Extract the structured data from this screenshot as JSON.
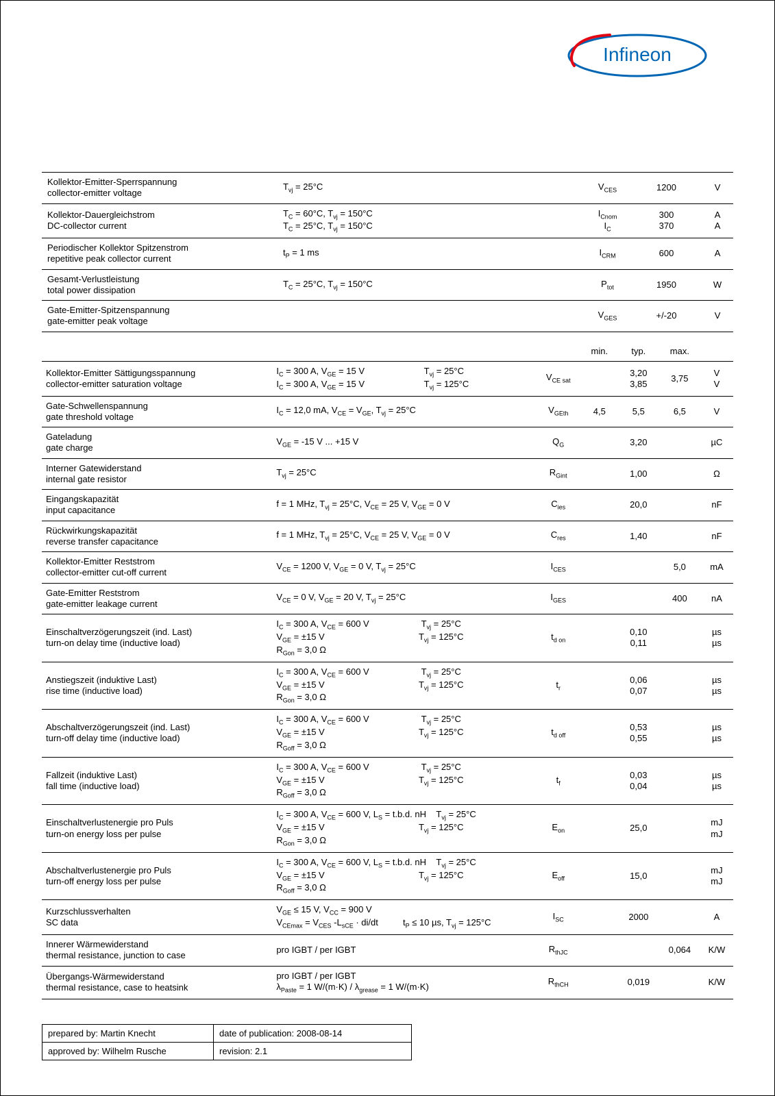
{
  "logo": {
    "text": "Infineon"
  },
  "table1": {
    "columns": {
      "desc_width": 300,
      "cond_width": 390,
      "sym_width": 60,
      "val_width": 90,
      "unit_width": 40
    },
    "rows": [
      {
        "desc_de": "Kollektor-Emitter-Sperrspannung",
        "desc_en": "collector-emitter voltage",
        "cond": "T<sub>vj</sub> = 25°C",
        "sym": "V<sub>CES</sub>",
        "val": "1200",
        "unit": "V"
      },
      {
        "desc_de": "Kollektor-Dauergleichstrom",
        "desc_en": "DC-collector current",
        "cond": "T<sub>C</sub> = 60°C, T<sub>vj</sub> = 150°C<br>T<sub>C</sub> = 25°C, T<sub>vj</sub> = 150°C",
        "sym": "I<sub>Cnom</sub><br>I<sub>C</sub>",
        "val": "300<br>370",
        "unit": "A<br>A"
      },
      {
        "desc_de": "Periodischer Kollektor Spitzenstrom",
        "desc_en": "repetitive peak collector current",
        "cond": "t<sub>P</sub> = 1 ms",
        "sym": "I<sub>CRM</sub>",
        "val": "600",
        "unit": "A"
      },
      {
        "desc_de": "Gesamt-Verlustleistung",
        "desc_en": "total power dissipation",
        "cond": "T<sub>C</sub> = 25°C, T<sub>vj</sub> = 150°C",
        "sym": "P<sub>tot</sub>",
        "val": "1950",
        "unit": "W"
      },
      {
        "desc_de": "Gate-Emitter-Spitzenspannung",
        "desc_en": "gate-emitter peak voltage",
        "cond": "",
        "sym": "V<sub>GES</sub>",
        "val": "+/-20",
        "unit": "V"
      }
    ]
  },
  "table2": {
    "head": {
      "min": "min.",
      "typ": "typ.",
      "max": "max."
    },
    "rows": [
      {
        "desc_de": "Kollektor-Emitter Sättigungsspannung",
        "desc_en": "collector-emitter saturation voltage",
        "cond": "I<sub>C</sub> = 300 A, V<sub>GE</sub> = 15 V&nbsp;&nbsp;&nbsp;&nbsp;&nbsp;&nbsp;&nbsp;&nbsp;&nbsp;&nbsp;&nbsp;&nbsp;&nbsp;&nbsp;&nbsp;&nbsp;&nbsp;&nbsp;&nbsp;&nbsp;&nbsp;&nbsp;&nbsp;&nbsp;T<sub>vj</sub> = 25°C<br>I<sub>C</sub> = 300 A, V<sub>GE</sub> = 15 V&nbsp;&nbsp;&nbsp;&nbsp;&nbsp;&nbsp;&nbsp;&nbsp;&nbsp;&nbsp;&nbsp;&nbsp;&nbsp;&nbsp;&nbsp;&nbsp;&nbsp;&nbsp;&nbsp;&nbsp;&nbsp;&nbsp;&nbsp;&nbsp;T<sub>vj</sub> = 125°C",
        "sym": "V<sub>CE sat</sub>",
        "min": "",
        "typ": "3,20<br>3,85",
        "max": "3,75",
        "unit": "V<br>V"
      },
      {
        "desc_de": "Gate-Schwellenspannung",
        "desc_en": "gate threshold voltage",
        "cond": "I<sub>C</sub> = 12,0 mA, V<sub>CE</sub> = V<sub>GE</sub>, T<sub>vj</sub> = 25°C",
        "sym": "V<sub>GEth</sub>",
        "min": "4,5",
        "typ": "5,5",
        "max": "6,5",
        "unit": "V"
      },
      {
        "desc_de": "Gateladung",
        "desc_en": "gate charge",
        "cond": "V<sub>GE</sub> = -15 V ... +15 V",
        "sym": "Q<sub>G</sub>",
        "min": "",
        "typ": "3,20",
        "max": "",
        "unit": "µC"
      },
      {
        "desc_de": "Interner Gatewiderstand",
        "desc_en": "internal gate resistor",
        "cond": "T<sub>vj</sub> = 25°C",
        "sym": "R<sub>Gint</sub>",
        "min": "",
        "typ": "1,00",
        "max": "",
        "unit": "Ω"
      },
      {
        "desc_de": "Eingangskapazität",
        "desc_en": "input capacitance",
        "cond": "f = 1 MHz, T<sub>vj</sub> = 25°C, V<sub>CE</sub> = 25 V, V<sub>GE</sub> = 0 V",
        "sym": "C<sub>ies</sub>",
        "min": "",
        "typ": "20,0",
        "max": "",
        "unit": "nF"
      },
      {
        "desc_de": "Rückwirkungskapazität",
        "desc_en": "reverse transfer capacitance",
        "cond": "f = 1 MHz, T<sub>vj</sub> = 25°C, V<sub>CE</sub> = 25 V, V<sub>GE</sub> = 0 V",
        "sym": "C<sub>res</sub>",
        "min": "",
        "typ": "1,40",
        "max": "",
        "unit": "nF"
      },
      {
        "desc_de": "Kollektor-Emitter Reststrom",
        "desc_en": "collector-emitter cut-off current",
        "cond": "V<sub>CE</sub> = 1200 V, V<sub>GE</sub> = 0 V, T<sub>vj</sub> = 25°C",
        "sym": "I<sub>CES</sub>",
        "min": "",
        "typ": "",
        "max": "5,0",
        "unit": "mA"
      },
      {
        "desc_de": "Gate-Emitter Reststrom",
        "desc_en": "gate-emitter leakage current",
        "cond": "V<sub>CE</sub> = 0 V, V<sub>GE</sub> = 20 V, T<sub>vj</sub> = 25°C",
        "sym": "I<sub>GES</sub>",
        "min": "",
        "typ": "",
        "max": "400",
        "unit": "nA"
      },
      {
        "desc_de": "Einschaltverzögerungszeit (ind. Last)",
        "desc_en": "turn-on delay time (inductive load)",
        "cond": "I<sub>C</sub> = 300 A, V<sub>CE</sub> = 600 V&nbsp;&nbsp;&nbsp;&nbsp;&nbsp;&nbsp;&nbsp;&nbsp;&nbsp;&nbsp;&nbsp;&nbsp;&nbsp;&nbsp;&nbsp;&nbsp;&nbsp;&nbsp;&nbsp;&nbsp;&nbsp;T<sub>vj</sub> = 25°C<br>V<sub>GE</sub> = ±15 V&nbsp;&nbsp;&nbsp;&nbsp;&nbsp;&nbsp;&nbsp;&nbsp;&nbsp;&nbsp;&nbsp;&nbsp;&nbsp;&nbsp;&nbsp;&nbsp;&nbsp;&nbsp;&nbsp;&nbsp;&nbsp;&nbsp;&nbsp;&nbsp;&nbsp;&nbsp;&nbsp;&nbsp;&nbsp;&nbsp;&nbsp;&nbsp;&nbsp;&nbsp;&nbsp;&nbsp;&nbsp;&nbsp;T<sub>vj</sub> = 125°C<br>R<sub>Gon</sub> = 3,0 Ω",
        "sym": "t<sub>d on</sub>",
        "min": "",
        "typ": "0,10<br>0,11",
        "max": "",
        "unit": "µs<br>µs"
      },
      {
        "desc_de": "Anstiegszeit (induktive Last)",
        "desc_en": "rise time (inductive load)",
        "cond": "I<sub>C</sub> = 300 A, V<sub>CE</sub> = 600 V&nbsp;&nbsp;&nbsp;&nbsp;&nbsp;&nbsp;&nbsp;&nbsp;&nbsp;&nbsp;&nbsp;&nbsp;&nbsp;&nbsp;&nbsp;&nbsp;&nbsp;&nbsp;&nbsp;&nbsp;&nbsp;T<sub>vj</sub> = 25°C<br>V<sub>GE</sub> = ±15 V&nbsp;&nbsp;&nbsp;&nbsp;&nbsp;&nbsp;&nbsp;&nbsp;&nbsp;&nbsp;&nbsp;&nbsp;&nbsp;&nbsp;&nbsp;&nbsp;&nbsp;&nbsp;&nbsp;&nbsp;&nbsp;&nbsp;&nbsp;&nbsp;&nbsp;&nbsp;&nbsp;&nbsp;&nbsp;&nbsp;&nbsp;&nbsp;&nbsp;&nbsp;&nbsp;&nbsp;&nbsp;&nbsp;T<sub>vj</sub> = 125°C<br>R<sub>Gon</sub> = 3,0 Ω",
        "sym": "t<sub>r</sub>",
        "min": "",
        "typ": "0,06<br>0,07",
        "max": "",
        "unit": "µs<br>µs"
      },
      {
        "desc_de": "Abschaltverzögerungszeit (ind. Last)",
        "desc_en": "turn-off delay time (inductive load)",
        "cond": "I<sub>C</sub> = 300 A, V<sub>CE</sub> = 600 V&nbsp;&nbsp;&nbsp;&nbsp;&nbsp;&nbsp;&nbsp;&nbsp;&nbsp;&nbsp;&nbsp;&nbsp;&nbsp;&nbsp;&nbsp;&nbsp;&nbsp;&nbsp;&nbsp;&nbsp;&nbsp;T<sub>vj</sub> = 25°C<br>V<sub>GE</sub> = ±15 V&nbsp;&nbsp;&nbsp;&nbsp;&nbsp;&nbsp;&nbsp;&nbsp;&nbsp;&nbsp;&nbsp;&nbsp;&nbsp;&nbsp;&nbsp;&nbsp;&nbsp;&nbsp;&nbsp;&nbsp;&nbsp;&nbsp;&nbsp;&nbsp;&nbsp;&nbsp;&nbsp;&nbsp;&nbsp;&nbsp;&nbsp;&nbsp;&nbsp;&nbsp;&nbsp;&nbsp;&nbsp;&nbsp;T<sub>vj</sub> = 125°C<br>R<sub>Goff</sub> = 3,0 Ω",
        "sym": "t<sub>d off</sub>",
        "min": "",
        "typ": "0,53<br>0,55",
        "max": "",
        "unit": "µs<br>µs"
      },
      {
        "desc_de": "Fallzeit (induktive Last)",
        "desc_en": "fall time (inductive load)",
        "cond": "I<sub>C</sub> = 300 A, V<sub>CE</sub> = 600 V&nbsp;&nbsp;&nbsp;&nbsp;&nbsp;&nbsp;&nbsp;&nbsp;&nbsp;&nbsp;&nbsp;&nbsp;&nbsp;&nbsp;&nbsp;&nbsp;&nbsp;&nbsp;&nbsp;&nbsp;&nbsp;T<sub>vj</sub> = 25°C<br>V<sub>GE</sub> = ±15 V&nbsp;&nbsp;&nbsp;&nbsp;&nbsp;&nbsp;&nbsp;&nbsp;&nbsp;&nbsp;&nbsp;&nbsp;&nbsp;&nbsp;&nbsp;&nbsp;&nbsp;&nbsp;&nbsp;&nbsp;&nbsp;&nbsp;&nbsp;&nbsp;&nbsp;&nbsp;&nbsp;&nbsp;&nbsp;&nbsp;&nbsp;&nbsp;&nbsp;&nbsp;&nbsp;&nbsp;&nbsp;&nbsp;T<sub>vj</sub> = 125°C<br>R<sub>Goff</sub> = 3,0 Ω",
        "sym": "t<sub>f</sub>",
        "min": "",
        "typ": "0,03<br>0,04",
        "max": "",
        "unit": "µs<br>µs"
      },
      {
        "desc_de": "Einschaltverlustenergie pro Puls",
        "desc_en": "turn-on energy loss per pulse",
        "cond": "I<sub>C</sub> = 300 A, V<sub>CE</sub> = 600 V, L<sub>S</sub> = t.b.d. nH&nbsp;&nbsp;&nbsp;&nbsp;T<sub>vj</sub> = 25°C<br>V<sub>GE</sub> = ±15 V&nbsp;&nbsp;&nbsp;&nbsp;&nbsp;&nbsp;&nbsp;&nbsp;&nbsp;&nbsp;&nbsp;&nbsp;&nbsp;&nbsp;&nbsp;&nbsp;&nbsp;&nbsp;&nbsp;&nbsp;&nbsp;&nbsp;&nbsp;&nbsp;&nbsp;&nbsp;&nbsp;&nbsp;&nbsp;&nbsp;&nbsp;&nbsp;&nbsp;&nbsp;&nbsp;&nbsp;&nbsp;&nbsp;T<sub>vj</sub> = 125°C<br>R<sub>Gon</sub> = 3,0 Ω",
        "sym": "E<sub>on</sub>",
        "min": "",
        "typ": "25,0",
        "max": "",
        "unit": "mJ<br>mJ"
      },
      {
        "desc_de": "Abschaltverlustenergie pro Puls",
        "desc_en": "turn-off energy loss per pulse",
        "cond": "I<sub>C</sub> = 300 A, V<sub>CE</sub> = 600 V, L<sub>S</sub> = t.b.d. nH&nbsp;&nbsp;&nbsp;&nbsp;T<sub>vj</sub> = 25°C<br>V<sub>GE</sub> = ±15 V&nbsp;&nbsp;&nbsp;&nbsp;&nbsp;&nbsp;&nbsp;&nbsp;&nbsp;&nbsp;&nbsp;&nbsp;&nbsp;&nbsp;&nbsp;&nbsp;&nbsp;&nbsp;&nbsp;&nbsp;&nbsp;&nbsp;&nbsp;&nbsp;&nbsp;&nbsp;&nbsp;&nbsp;&nbsp;&nbsp;&nbsp;&nbsp;&nbsp;&nbsp;&nbsp;&nbsp;&nbsp;&nbsp;T<sub>vj</sub> = 125°C<br>R<sub>Goff</sub> = 3,0 Ω",
        "sym": "E<sub>off</sub>",
        "min": "",
        "typ": "15,0",
        "max": "",
        "unit": "mJ<br>mJ"
      },
      {
        "desc_de": "Kurzschlussverhalten",
        "desc_en": "SC data",
        "cond": "V<sub>GE</sub> ≤ 15 V, V<sub>CC</sub> = 900 V<br>V<sub>CEmax</sub> = V<sub>CES</sub> -L<sub>sCE</sub> · di/dt&nbsp;&nbsp;&nbsp;&nbsp;&nbsp;&nbsp;&nbsp;&nbsp;&nbsp;&nbsp;t<sub>P</sub> ≤ 10 µs, T<sub>vj</sub> = 125°C",
        "sym": "I<sub>SC</sub>",
        "min": "",
        "typ": "2000",
        "max": "",
        "unit": "A"
      },
      {
        "desc_de": "Innerer Wärmewiderstand",
        "desc_en": "thermal resistance, junction to case",
        "cond": "pro IGBT / per IGBT",
        "sym": "R<sub>thJC</sub>",
        "min": "",
        "typ": "",
        "max": "0,064",
        "unit": "K/W"
      },
      {
        "desc_de": "Übergangs-Wärmewiderstand",
        "desc_en": "thermal resistance, case to heatsink",
        "cond": "pro IGBT / per IGBT<br>λ<sub>Paste</sub> = 1 W/(m·K) /  λ<sub>grease</sub> = 1 W/(m·K)",
        "sym": "R<sub>thCH</sub>",
        "min": "",
        "typ": "0,019",
        "max": "",
        "unit": "K/W"
      }
    ]
  },
  "meta": {
    "prepared_label": "prepared by: Martin Knecht",
    "date_label": "date of publication: 2008-08-14",
    "approved_label": "approved by: Wilhelm Rusche",
    "revision_label": "revision: 2.1"
  }
}
